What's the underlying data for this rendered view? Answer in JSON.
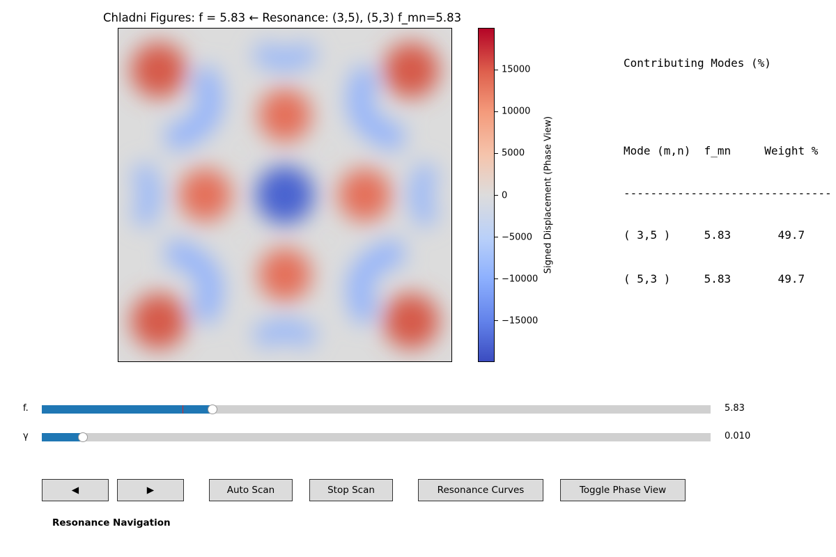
{
  "plot": {
    "title": "Chladni Figures: f = 5.83  ← Resonance: (3,5), (5,3) f_mn=5.83",
    "colorbar": {
      "label": "Signed Displacement (Phase View)",
      "ticks": [
        "15000",
        "10000",
        "5000",
        "0",
        "−5000",
        "−10000",
        "−15000"
      ],
      "min": -20000,
      "max": 20000,
      "colormap": "coolwarm"
    }
  },
  "modes_panel": {
    "title": "Contributing Modes (%)",
    "header": "Mode (m,n)  f_mn     Weight %",
    "divider": "-------------------------------",
    "rows": [
      "( 3,5 )     5.83       49.7",
      "( 5,3 )     5.83       49.7"
    ]
  },
  "sliders": {
    "frequency": {
      "label": "f.",
      "value_text": "5.83",
      "fill_fraction": 0.255,
      "marker_fraction": 0.21
    },
    "damping": {
      "label": "γ",
      "value_text": "0.010",
      "fill_fraction": 0.061
    }
  },
  "buttons": {
    "prev": "◀",
    "next": "▶",
    "auto_scan": "Auto Scan",
    "stop_scan": "Stop Scan",
    "resonance_curves": "Resonance Curves",
    "toggle_phase": "Toggle Phase View"
  },
  "navigation_caption": "Resonance Navigation",
  "colors": {
    "accent": "#1f77b4",
    "resonance_marker": "#d62728",
    "button_bg": "#dcdcdc",
    "track_bg": "#d0d0d0"
  }
}
